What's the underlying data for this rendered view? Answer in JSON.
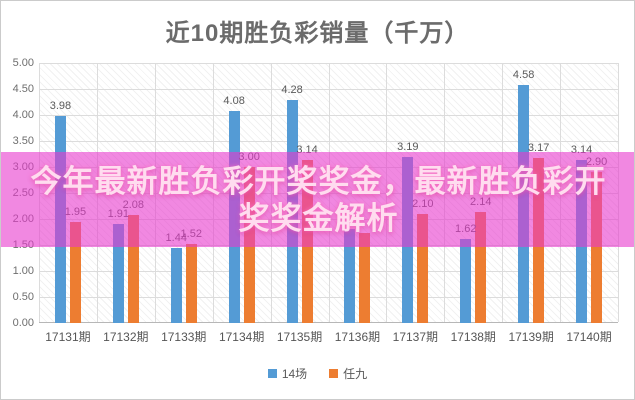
{
  "title": "近10期胜负彩销量（千万）",
  "overlay": {
    "line1": "今年最新胜负彩开奖奖金，最新胜负彩开",
    "line2": "奖奖金解析"
  },
  "chart_data": {
    "type": "bar",
    "title": "近10期胜负彩销量（千万）",
    "categories": [
      "17131期",
      "17132期",
      "17133期",
      "17134期",
      "17135期",
      "17136期",
      "17137期",
      "17138期",
      "17139期",
      "17140期"
    ],
    "series": [
      {
        "name": "14场",
        "color": "#549bd5",
        "values": [
          3.98,
          1.91,
          1.44,
          4.08,
          4.28,
          1.8,
          3.19,
          1.62,
          4.58,
          3.14
        ],
        "labels": [
          "3.98",
          "1.91",
          "1.44",
          "4.08",
          "4.28",
          "",
          "3.19",
          "1.62",
          "4.58",
          "3.14"
        ]
      },
      {
        "name": "任九",
        "color": "#ed7d31",
        "values": [
          1.95,
          2.08,
          1.52,
          3.0,
          3.14,
          1.73,
          2.1,
          2.14,
          3.17,
          2.9
        ],
        "labels": [
          "1.95",
          "2.08",
          "1.52",
          "3.00",
          "3.14",
          "",
          "2.10",
          "2.14",
          "3.17",
          "2.90"
        ]
      }
    ],
    "ylabel": "",
    "xlabel": "",
    "ylim": [
      0,
      5
    ],
    "ytick_step": 0.5,
    "yticks": [
      "0.00",
      "0.50",
      "1.00",
      "1.50",
      "2.00",
      "2.50",
      "3.00",
      "3.50",
      "4.00",
      "4.50",
      "5.00"
    ],
    "grid": true,
    "plot_background": "diagonal-hatch",
    "legend_position": "bottom"
  },
  "colors": {
    "series_14chang": "#549bd5",
    "series_renjiu": "#ed7d31",
    "overlay_band": "rgba(232,56,205,0.60)",
    "overlay_text": "#ffdcef",
    "gridline": "#dcdcdc",
    "title_text": "#6b6b6b"
  }
}
